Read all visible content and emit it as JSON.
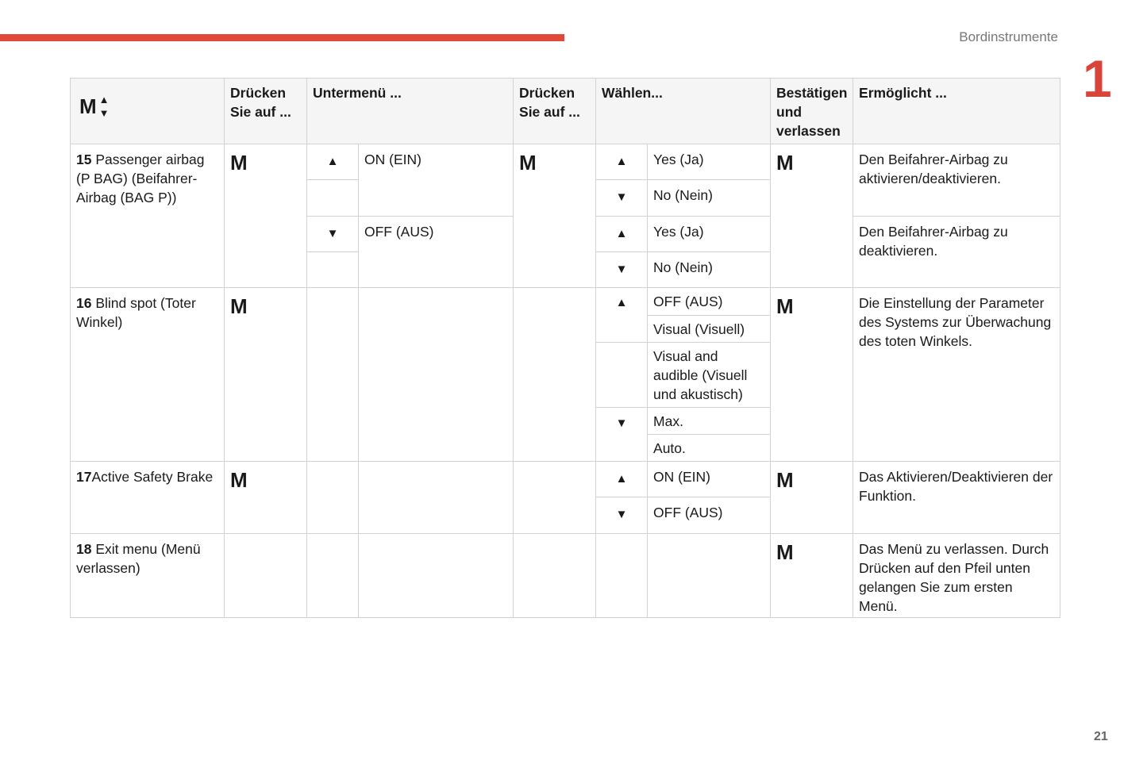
{
  "header": {
    "section": "Bordinstrumente",
    "chapter": "1",
    "page": "21"
  },
  "colors": {
    "accent": "#e0483a"
  },
  "table": {
    "head": {
      "icon": "M",
      "c2": "Drücken Sie auf ...",
      "c3": "Untermenü ...",
      "c4": "Drücken Sie auf ...",
      "c5": "Wählen...",
      "c6": "Bestätigen und verlassen",
      "c7": "Ermöglicht ..."
    },
    "m": "M",
    "up": "▲",
    "down": "▼",
    "r15": {
      "num": "15",
      "label": " Passenger airbag (P BAG) (Beifahrer-Airbag (BAG P))",
      "sub_on": "ON (EIN)",
      "sub_off": "OFF (AUS)",
      "yes": "Yes (Ja)",
      "no": "No (Nein)",
      "desc1": "Den Beifahrer-Airbag zu aktivieren/deaktivieren.",
      "desc2": "Den Beifahrer-Airbag zu deaktivieren."
    },
    "r16": {
      "num": "16",
      "label": " Blind spot (Toter Winkel)",
      "opts": [
        "OFF (AUS)",
        "Visual (Visuell)",
        "Visual and audible (Visuell und akustisch)",
        "Max.",
        "Auto."
      ],
      "desc": "Die Einstellung der Parameter des Systems zur Überwachung des toten Winkels."
    },
    "r17": {
      "num": "17",
      "label": "Active Safety Brake",
      "on": "ON (EIN)",
      "off": "OFF (AUS)",
      "desc": "Das Aktivieren/Deaktivieren der Funktion."
    },
    "r18": {
      "num": "18",
      "label": " Exit menu (Menü verlassen)",
      "desc": "Das Menü zu verlassen. Durch Drücken auf den Pfeil unten gelangen Sie zum ersten Menü."
    }
  }
}
